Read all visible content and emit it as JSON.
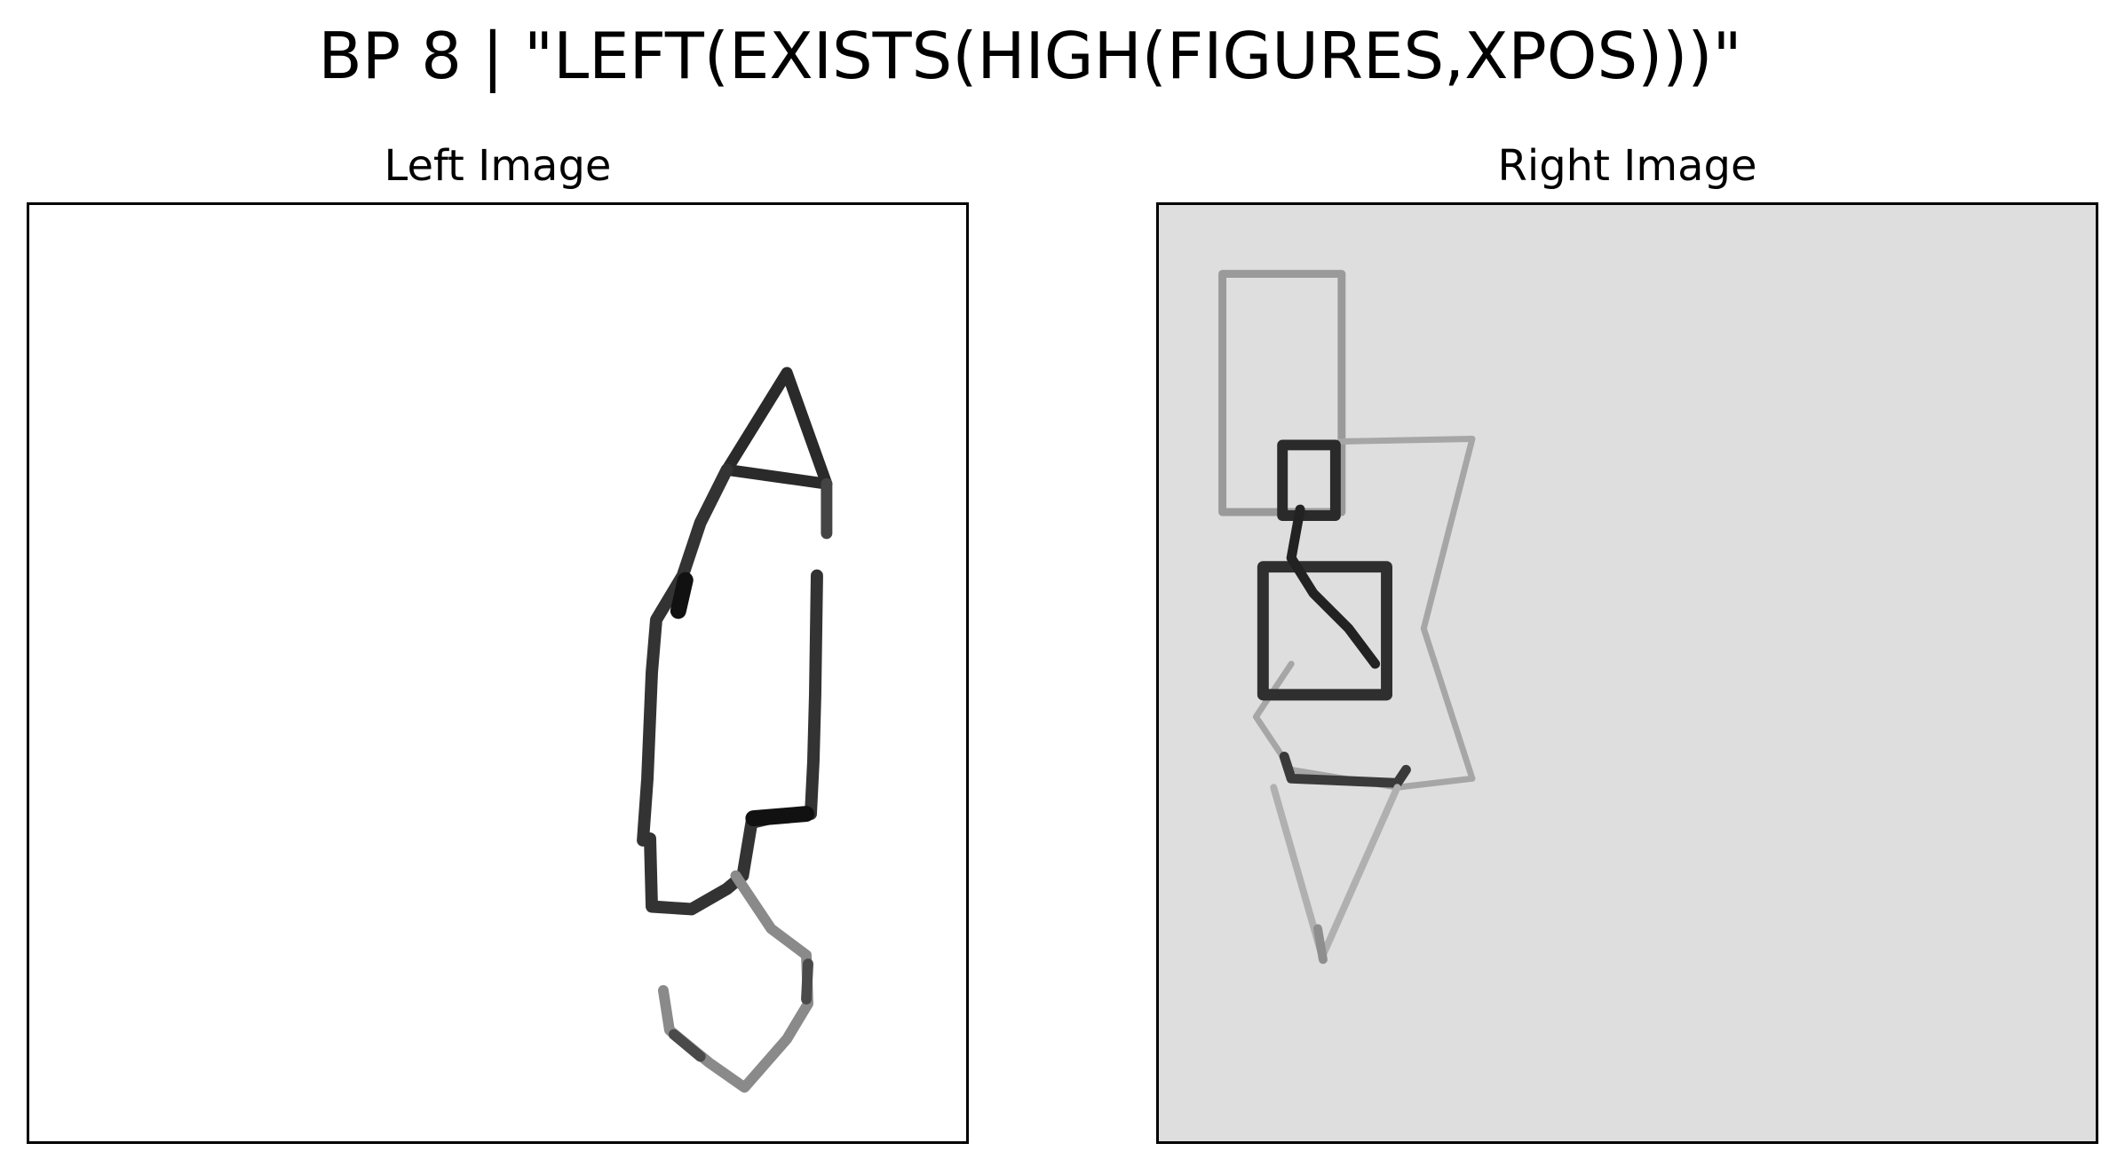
{
  "title": "BP 8 | \"LEFT(EXISTS(HIGH(FIGURES,XPOS)))\"",
  "panels": {
    "left": {
      "label": "Left Image",
      "background": "#ffffff"
    },
    "right": {
      "label": "Right Image",
      "background": "#dedede"
    }
  },
  "colors": {
    "stroke_dark": "#222222",
    "stroke_mid": "#555555",
    "stroke_light": "#9a9a9a",
    "frame": "#000000"
  }
}
